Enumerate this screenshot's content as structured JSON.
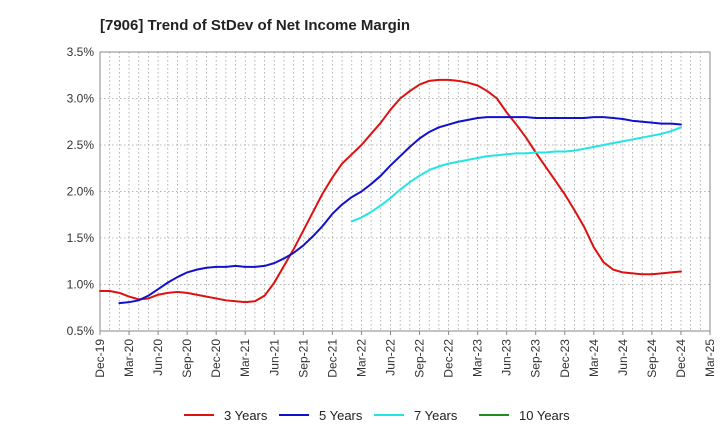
{
  "chart_data": {
    "type": "line",
    "title": "[7906]  Trend of StDev of Net Income Margin",
    "xlabel": "",
    "ylabel": "",
    "x_ticks": [
      "Dec-19",
      "Mar-20",
      "Jun-20",
      "Sep-20",
      "Dec-20",
      "Mar-21",
      "Jun-21",
      "Sep-21",
      "Dec-21",
      "Mar-22",
      "Jun-22",
      "Sep-22",
      "Dec-22",
      "Mar-23",
      "Jun-23",
      "Sep-23",
      "Dec-23",
      "Mar-24",
      "Jun-24",
      "Sep-24",
      "Dec-24",
      "Mar-25"
    ],
    "y_ticks": [
      "0.5%",
      "1.0%",
      "1.5%",
      "2.0%",
      "2.5%",
      "3.0%",
      "3.5%"
    ],
    "ylim": [
      0.5,
      3.5
    ],
    "y_unit": "%",
    "grid": true,
    "legend_position": "bottom",
    "series": [
      {
        "name": "3 Years",
        "color": "#dd1111",
        "points": [
          [
            "Dec-19",
            0.93
          ],
          [
            "Jan-20",
            0.93
          ],
          [
            "Feb-20",
            0.91
          ],
          [
            "Mar-20",
            0.87
          ],
          [
            "Apr-20",
            0.84
          ],
          [
            "May-20",
            0.85
          ],
          [
            "Jun-20",
            0.89
          ],
          [
            "Jul-20",
            0.91
          ],
          [
            "Aug-20",
            0.92
          ],
          [
            "Sep-20",
            0.91
          ],
          [
            "Oct-20",
            0.89
          ],
          [
            "Nov-20",
            0.87
          ],
          [
            "Dec-20",
            0.85
          ],
          [
            "Jan-21",
            0.83
          ],
          [
            "Feb-21",
            0.82
          ],
          [
            "Mar-21",
            0.81
          ],
          [
            "Apr-21",
            0.82
          ],
          [
            "May-21",
            0.88
          ],
          [
            "Jun-21",
            1.02
          ],
          [
            "Jul-21",
            1.2
          ],
          [
            "Aug-21",
            1.38
          ],
          [
            "Sep-21",
            1.58
          ],
          [
            "Oct-21",
            1.78
          ],
          [
            "Nov-21",
            1.98
          ],
          [
            "Dec-21",
            2.15
          ],
          [
            "Jan-22",
            2.3
          ],
          [
            "Feb-22",
            2.4
          ],
          [
            "Mar-22",
            2.5
          ],
          [
            "Apr-22",
            2.62
          ],
          [
            "May-22",
            2.74
          ],
          [
            "Jun-22",
            2.88
          ],
          [
            "Jul-22",
            3.0
          ],
          [
            "Aug-22",
            3.08
          ],
          [
            "Sep-22",
            3.15
          ],
          [
            "Oct-22",
            3.19
          ],
          [
            "Nov-22",
            3.2
          ],
          [
            "Dec-22",
            3.2
          ],
          [
            "Jan-23",
            3.19
          ],
          [
            "Feb-23",
            3.17
          ],
          [
            "Mar-23",
            3.14
          ],
          [
            "Apr-23",
            3.08
          ],
          [
            "May-23",
            3.0
          ],
          [
            "Jun-23",
            2.85
          ],
          [
            "Jul-23",
            2.72
          ],
          [
            "Aug-23",
            2.58
          ],
          [
            "Sep-23",
            2.42
          ],
          [
            "Oct-23",
            2.27
          ],
          [
            "Nov-23",
            2.12
          ],
          [
            "Dec-23",
            1.97
          ],
          [
            "Jan-24",
            1.8
          ],
          [
            "Feb-24",
            1.62
          ],
          [
            "Mar-24",
            1.4
          ],
          [
            "Apr-24",
            1.24
          ],
          [
            "May-24",
            1.16
          ],
          [
            "Jun-24",
            1.13
          ],
          [
            "Jul-24",
            1.12
          ],
          [
            "Aug-24",
            1.11
          ],
          [
            "Sep-24",
            1.11
          ],
          [
            "Oct-24",
            1.12
          ],
          [
            "Nov-24",
            1.13
          ],
          [
            "Dec-24",
            1.14
          ]
        ]
      },
      {
        "name": "5 Years",
        "color": "#1111cc",
        "points": [
          [
            "Feb-20",
            0.8
          ],
          [
            "Mar-20",
            0.81
          ],
          [
            "Apr-20",
            0.83
          ],
          [
            "May-20",
            0.88
          ],
          [
            "Jun-20",
            0.95
          ],
          [
            "Jul-20",
            1.02
          ],
          [
            "Aug-20",
            1.08
          ],
          [
            "Sep-20",
            1.13
          ],
          [
            "Oct-20",
            1.16
          ],
          [
            "Nov-20",
            1.18
          ],
          [
            "Dec-20",
            1.19
          ],
          [
            "Jan-21",
            1.19
          ],
          [
            "Feb-21",
            1.2
          ],
          [
            "Mar-21",
            1.19
          ],
          [
            "Apr-21",
            1.19
          ],
          [
            "May-21",
            1.2
          ],
          [
            "Jun-21",
            1.23
          ],
          [
            "Jul-21",
            1.28
          ],
          [
            "Aug-21",
            1.34
          ],
          [
            "Sep-21",
            1.42
          ],
          [
            "Oct-21",
            1.52
          ],
          [
            "Nov-21",
            1.63
          ],
          [
            "Dec-21",
            1.76
          ],
          [
            "Jan-22",
            1.86
          ],
          [
            "Feb-22",
            1.94
          ],
          [
            "Mar-22",
            2.0
          ],
          [
            "Apr-22",
            2.08
          ],
          [
            "May-22",
            2.17
          ],
          [
            "Jun-22",
            2.28
          ],
          [
            "Jul-22",
            2.38
          ],
          [
            "Aug-22",
            2.48
          ],
          [
            "Sep-22",
            2.57
          ],
          [
            "Oct-22",
            2.64
          ],
          [
            "Nov-22",
            2.69
          ],
          [
            "Dec-22",
            2.72
          ],
          [
            "Jan-23",
            2.75
          ],
          [
            "Feb-23",
            2.77
          ],
          [
            "Mar-23",
            2.79
          ],
          [
            "Apr-23",
            2.8
          ],
          [
            "May-23",
            2.8
          ],
          [
            "Jun-23",
            2.8
          ],
          [
            "Jul-23",
            2.8
          ],
          [
            "Aug-23",
            2.8
          ],
          [
            "Sep-23",
            2.79
          ],
          [
            "Oct-23",
            2.79
          ],
          [
            "Nov-23",
            2.79
          ],
          [
            "Dec-23",
            2.79
          ],
          [
            "Jan-24",
            2.79
          ],
          [
            "Feb-24",
            2.79
          ],
          [
            "Mar-24",
            2.8
          ],
          [
            "Apr-24",
            2.8
          ],
          [
            "May-24",
            2.79
          ],
          [
            "Jun-24",
            2.78
          ],
          [
            "Jul-24",
            2.76
          ],
          [
            "Aug-24",
            2.75
          ],
          [
            "Sep-24",
            2.74
          ],
          [
            "Oct-24",
            2.73
          ],
          [
            "Nov-24",
            2.73
          ],
          [
            "Dec-24",
            2.72
          ]
        ]
      },
      {
        "name": "7 Years",
        "color": "#22e5e5",
        "points": [
          [
            "Feb-22",
            1.68
          ],
          [
            "Mar-22",
            1.72
          ],
          [
            "Apr-22",
            1.78
          ],
          [
            "May-22",
            1.85
          ],
          [
            "Jun-22",
            1.93
          ],
          [
            "Jul-22",
            2.02
          ],
          [
            "Aug-22",
            2.1
          ],
          [
            "Sep-22",
            2.17
          ],
          [
            "Oct-22",
            2.23
          ],
          [
            "Nov-22",
            2.27
          ],
          [
            "Dec-22",
            2.3
          ],
          [
            "Jan-23",
            2.32
          ],
          [
            "Feb-23",
            2.34
          ],
          [
            "Mar-23",
            2.36
          ],
          [
            "Apr-23",
            2.38
          ],
          [
            "May-23",
            2.39
          ],
          [
            "Jun-23",
            2.4
          ],
          [
            "Jul-23",
            2.41
          ],
          [
            "Aug-23",
            2.41
          ],
          [
            "Sep-23",
            2.42
          ],
          [
            "Oct-23",
            2.42
          ],
          [
            "Nov-23",
            2.43
          ],
          [
            "Dec-23",
            2.43
          ],
          [
            "Jan-24",
            2.44
          ],
          [
            "Feb-24",
            2.46
          ],
          [
            "Mar-24",
            2.48
          ],
          [
            "Apr-24",
            2.5
          ],
          [
            "May-24",
            2.52
          ],
          [
            "Jun-24",
            2.54
          ],
          [
            "Jul-24",
            2.56
          ],
          [
            "Aug-24",
            2.58
          ],
          [
            "Sep-24",
            2.6
          ],
          [
            "Oct-24",
            2.62
          ],
          [
            "Nov-24",
            2.65
          ],
          [
            "Dec-24",
            2.69
          ]
        ]
      },
      {
        "name": "10 Years",
        "color": "#228b22",
        "points": []
      }
    ]
  }
}
